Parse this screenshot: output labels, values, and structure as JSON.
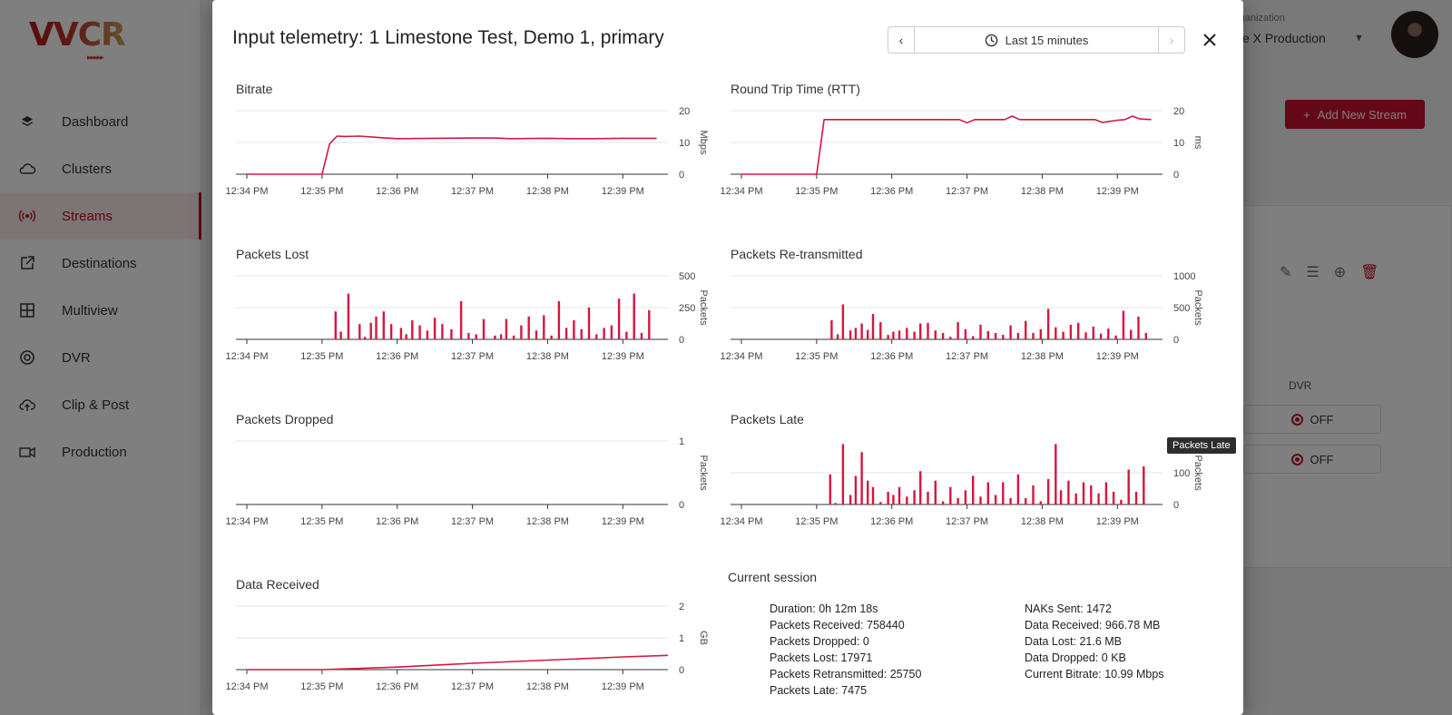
{
  "app": {
    "logo_text": "VVCR",
    "nav": [
      {
        "label": "Dashboard",
        "icon": "layers-icon"
      },
      {
        "label": "Clusters",
        "icon": "cloud-icon"
      },
      {
        "label": "Streams",
        "icon": "broadcast-icon",
        "active": true
      },
      {
        "label": "Destinations",
        "icon": "external-link-icon"
      },
      {
        "label": "Multiview",
        "icon": "grid-icon"
      },
      {
        "label": "DVR",
        "icon": "record-circle-icon"
      },
      {
        "label": "Clip & Post",
        "icon": "cloud-upload-icon"
      },
      {
        "label": "Production",
        "icon": "video-camera-icon"
      }
    ],
    "org_label": "rganization",
    "org_value": "ve X Production",
    "add_stream_label": "Add New Stream",
    "dvr_header": "DVR",
    "dvr_rows": [
      "OFF",
      "OFF"
    ]
  },
  "modal": {
    "title": "Input telemetry: 1 Limestone Test, Demo 1, primary",
    "time_range": "Last 15 minutes",
    "tooltip": "Packets Late"
  },
  "colors": {
    "series": "#d6163f",
    "accent": "#c8102e"
  },
  "chart_data": [
    {
      "id": "bitrate",
      "type": "line",
      "title": "Bitrate",
      "ylabel": "Mbps",
      "ylim": [
        0,
        20
      ],
      "yticks": [
        "0",
        "10",
        "20"
      ],
      "xticks": [
        "12:34 PM",
        "12:35 PM",
        "12:36 PM",
        "12:37 PM",
        "12:38 PM",
        "12:39 PM"
      ],
      "x": [
        0,
        1.0,
        1.1,
        1.2,
        1.3,
        1.5,
        1.8,
        2.0,
        2.5,
        3.0,
        3.3,
        3.5,
        4.0,
        4.3,
        4.6,
        5.0,
        5.45
      ],
      "values": [
        0,
        0,
        9.5,
        12.0,
        11.9,
        12.0,
        11.5,
        11.2,
        11.3,
        11.4,
        11.4,
        11.2,
        11.3,
        11.2,
        11.2,
        11.3,
        11.3
      ]
    },
    {
      "id": "rtt",
      "type": "line",
      "title": "Round Trip Time (RTT)",
      "ylabel": "ms",
      "ylim": [
        0,
        20
      ],
      "yticks": [
        "0",
        "10",
        "20"
      ],
      "xticks": [
        "12:34 PM",
        "12:35 PM",
        "12:36 PM",
        "12:37 PM",
        "12:38 PM",
        "12:39 PM"
      ],
      "x": [
        0,
        1.0,
        1.1,
        2.0,
        2.5,
        2.9,
        3.0,
        3.1,
        3.5,
        3.6,
        3.7,
        4.0,
        4.5,
        4.7,
        4.8,
        5.0,
        5.1,
        5.2,
        5.3,
        5.45
      ],
      "values": [
        0,
        0,
        17.2,
        17.2,
        17.2,
        17.2,
        16.2,
        17.2,
        17.2,
        18.3,
        17.2,
        17.2,
        17.2,
        17.2,
        16.3,
        17.0,
        17.2,
        18.3,
        17.4,
        17.2
      ]
    },
    {
      "id": "lost",
      "type": "bar",
      "title": "Packets Lost",
      "ylabel": "Packets",
      "ylim": [
        0,
        500
      ],
      "yticks": [
        "0",
        "250",
        "500"
      ],
      "xticks": [
        "12:34 PM",
        "12:35 PM",
        "12:36 PM",
        "12:37 PM",
        "12:38 PM",
        "12:39 PM"
      ],
      "x": [
        1.1,
        1.18,
        1.25,
        1.35,
        1.5,
        1.57,
        1.65,
        1.72,
        1.82,
        1.92,
        2.05,
        2.12,
        2.2,
        2.3,
        2.4,
        2.5,
        2.6,
        2.72,
        2.85,
        2.95,
        3.05,
        3.15,
        3.3,
        3.38,
        3.45,
        3.55,
        3.65,
        3.75,
        3.85,
        3.95,
        4.05,
        4.15,
        4.25,
        4.35,
        4.45,
        4.55,
        4.65,
        4.75,
        4.85,
        4.95,
        5.05,
        5.15,
        5.25,
        5.35
      ],
      "values": [
        5,
        220,
        60,
        360,
        120,
        20,
        130,
        180,
        220,
        120,
        90,
        40,
        150,
        110,
        70,
        170,
        120,
        80,
        300,
        50,
        40,
        160,
        30,
        40,
        160,
        30,
        110,
        180,
        70,
        190,
        30,
        300,
        90,
        150,
        80,
        250,
        40,
        90,
        110,
        320,
        60,
        360,
        50,
        230
      ]
    },
    {
      "id": "retrans",
      "type": "bar",
      "title": "Packets Re-transmitted",
      "ylabel": "Packets",
      "ylim": [
        0,
        1000
      ],
      "yticks": [
        "0",
        "500",
        "1000"
      ],
      "xticks": [
        "12:34 PM",
        "12:35 PM",
        "12:36 PM",
        "12:37 PM",
        "12:38 PM",
        "12:39 PM"
      ],
      "x": [
        1.2,
        1.28,
        1.35,
        1.45,
        1.52,
        1.6,
        1.68,
        1.75,
        1.85,
        1.95,
        2.02,
        2.1,
        2.2,
        2.3,
        2.38,
        2.48,
        2.58,
        2.68,
        2.78,
        2.88,
        2.98,
        3.08,
        3.18,
        3.28,
        3.38,
        3.48,
        3.58,
        3.68,
        3.78,
        3.88,
        3.98,
        4.08,
        4.18,
        4.28,
        4.38,
        4.48,
        4.58,
        4.68,
        4.78,
        4.88,
        4.98,
        5.08,
        5.18,
        5.28,
        5.38
      ],
      "values": [
        300,
        80,
        550,
        140,
        180,
        250,
        150,
        400,
        270,
        70,
        120,
        140,
        180,
        120,
        250,
        260,
        140,
        100,
        40,
        270,
        160,
        50,
        230,
        130,
        100,
        70,
        220,
        100,
        290,
        100,
        160,
        480,
        190,
        120,
        230,
        260,
        110,
        200,
        90,
        170,
        60,
        450,
        150,
        360,
        100
      ]
    },
    {
      "id": "dropped",
      "type": "bar",
      "title": "Packets Dropped",
      "ylabel": "Packets",
      "ylim": [
        0,
        1
      ],
      "yticks": [
        "0",
        "1"
      ],
      "xticks": [
        "12:34 PM",
        "12:35 PM",
        "12:36 PM",
        "12:37 PM",
        "12:38 PM",
        "12:39 PM"
      ],
      "x": [],
      "values": []
    },
    {
      "id": "late",
      "type": "bar",
      "title": "Packets Late",
      "ylabel": "Packets",
      "ylim": [
        0,
        200
      ],
      "yticks": [
        "0",
        "100"
      ],
      "xticks": [
        "12:34 PM",
        "12:35 PM",
        "12:36 PM",
        "12:37 PM",
        "12:38 PM",
        "12:39 PM"
      ],
      "x": [
        1.18,
        1.25,
        1.35,
        1.45,
        1.52,
        1.6,
        1.68,
        1.75,
        1.85,
        1.95,
        2.02,
        2.1,
        2.2,
        2.3,
        2.38,
        2.48,
        2.58,
        2.68,
        2.78,
        2.88,
        2.98,
        3.08,
        3.18,
        3.28,
        3.38,
        3.48,
        3.58,
        3.68,
        3.78,
        3.88,
        3.98,
        4.08,
        4.18,
        4.25,
        4.35,
        4.45,
        4.55,
        4.65,
        4.75,
        4.85,
        4.95,
        5.05,
        5.15,
        5.25,
        5.35
      ],
      "values": [
        95,
        5,
        190,
        30,
        90,
        165,
        75,
        55,
        8,
        40,
        30,
        55,
        25,
        45,
        105,
        40,
        75,
        10,
        55,
        20,
        45,
        90,
        25,
        70,
        30,
        70,
        20,
        95,
        20,
        60,
        10,
        80,
        190,
        45,
        75,
        35,
        70,
        60,
        35,
        70,
        40,
        15,
        110,
        40,
        120
      ]
    },
    {
      "id": "data_received",
      "type": "line",
      "title": "Data Received",
      "ylabel": "GB",
      "ylim": [
        0,
        2
      ],
      "yticks": [
        "0",
        "1",
        "2"
      ],
      "xticks": [
        "12:34 PM",
        "12:35 PM",
        "12:36 PM",
        "12:37 PM",
        "12:38 PM",
        "12:39 PM"
      ],
      "x": [
        0,
        1.0,
        2.0,
        3.0,
        4.0,
        5.0,
        5.6
      ],
      "values": [
        0,
        0.0,
        0.08,
        0.2,
        0.3,
        0.4,
        0.45
      ]
    }
  ],
  "session": {
    "title": "Current session",
    "left": [
      "Duration: 0h 12m 18s",
      "Packets Received: 758440",
      "Packets Dropped: 0",
      "Packets Lost: 17971",
      "Packets Retransmitted: 25750",
      "Packets Late: 7475"
    ],
    "right": [
      "NAKs Sent: 1472",
      "Data Received: 966.78 MB",
      "Data Lost: 21.6 MB",
      "Data Dropped: 0 KB",
      "Current Bitrate: 10.99 Mbps"
    ]
  }
}
